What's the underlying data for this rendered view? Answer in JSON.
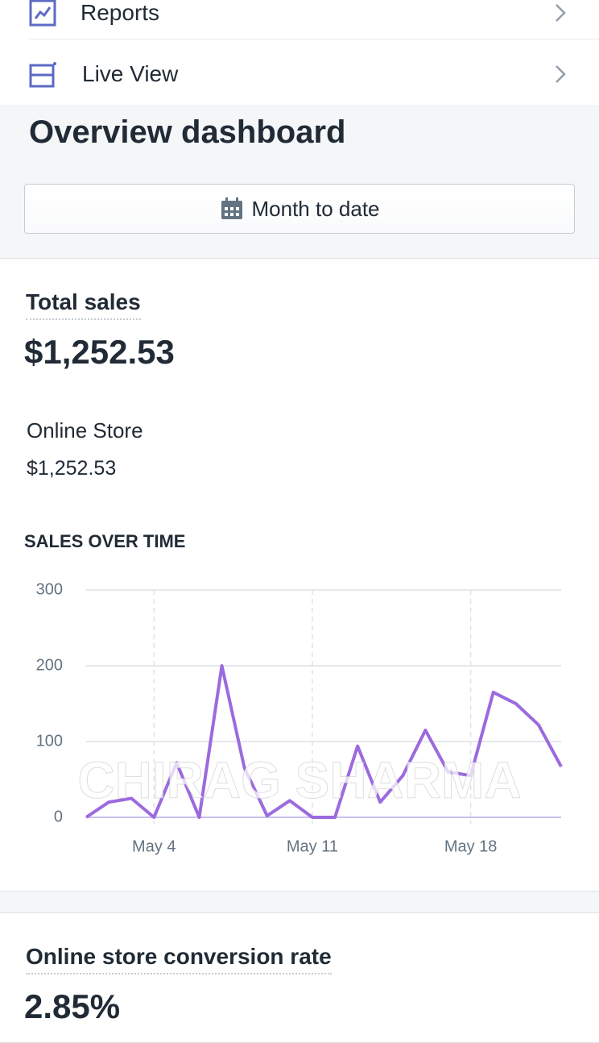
{
  "nav": [
    {
      "label": "Reports"
    },
    {
      "label": "Live View"
    }
  ],
  "header": {
    "title": "Overview dashboard",
    "date_button": "Month to date"
  },
  "total_sales": {
    "label": "Total sales",
    "value": "$1,252.53",
    "channel": "Online Store",
    "channel_value": "$1,252.53"
  },
  "chart_data": {
    "type": "line",
    "title": "SALES OVER TIME",
    "categories": [
      null,
      null,
      null,
      "May 4",
      null,
      null,
      null,
      null,
      null,
      null,
      "May 11",
      null,
      null,
      null,
      null,
      null,
      null,
      "May 18",
      null,
      null,
      null,
      null
    ],
    "series": [
      {
        "color": "#9c6ade",
        "values": [
          0,
          20,
          25,
          0,
          72,
          0,
          200,
          65,
          2,
          22,
          0,
          0,
          94,
          20,
          55,
          115,
          60,
          55,
          165,
          150,
          122,
          67
        ]
      }
    ],
    "ylim": [
      0,
      300
    ],
    "yticks": [
      0,
      100,
      200,
      300
    ],
    "grid": true
  },
  "watermark": "CHIRAG SHARMA",
  "conversion": {
    "label": "Online store conversion rate",
    "value": "2.85%"
  }
}
